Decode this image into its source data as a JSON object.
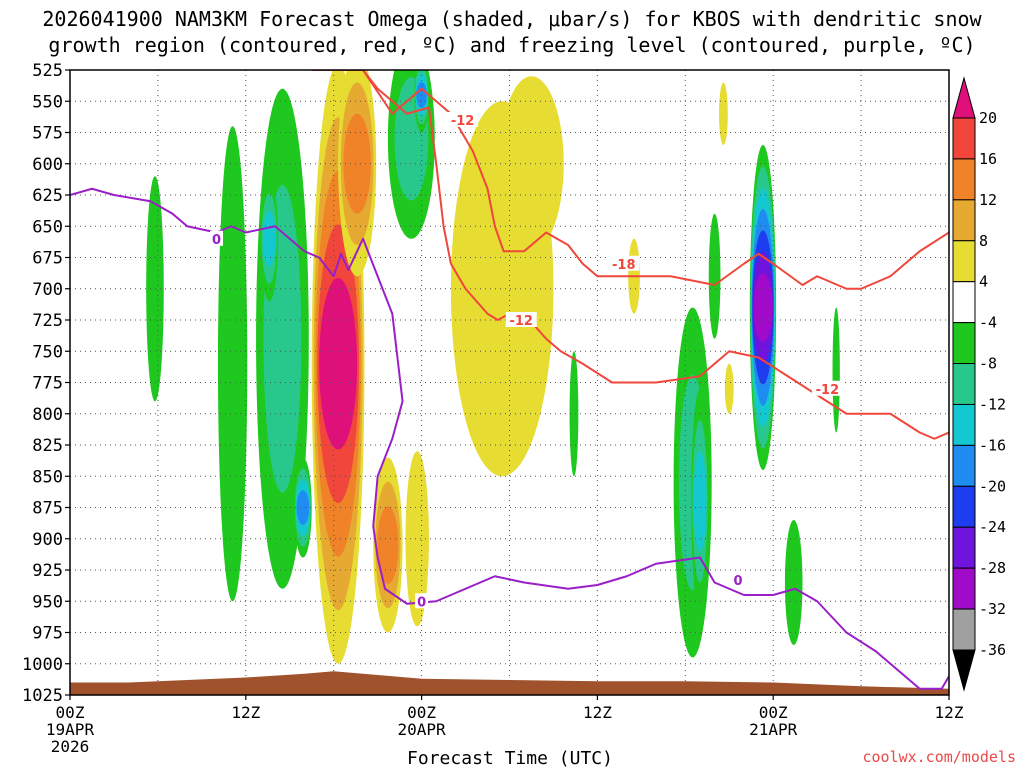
{
  "title": {
    "line1": "2026041900 NAM3KM Forecast Omega (shaded, μbar/s) for KBOS with dendritic snow",
    "line2": "growth region (contoured, red, ºC) and freezing level (contoured, purple, ºC)"
  },
  "credit": "coolwx.com/models",
  "colors": {
    "accent_credit": "#e84a4a",
    "red_contour": "#f0463c",
    "purple_contour": "#9b1ec8",
    "terrain": "#a0522d"
  },
  "chart_data": {
    "type": "heatmap",
    "title": "2026041900 NAM3KM Forecast Omega (shaded, μbar/s) for KBOS with dendritic snow growth region (contoured, red, ºC) and freezing level (contoured, purple, ºC)",
    "xlabel": "Forecast Time (UTC)",
    "ylabel": "",
    "x_range_hours": [
      0,
      60
    ],
    "y_range_mb": [
      525,
      1025
    ],
    "y_ticks": [
      "525",
      "550",
      "575",
      "600",
      "625",
      "650",
      "675",
      "700",
      "725",
      "750",
      "775",
      "800",
      "825",
      "850",
      "875",
      "900",
      "925",
      "950",
      "975",
      "1000",
      "1025"
    ],
    "x_ticks": [
      {
        "hour": 0,
        "label": "00Z",
        "date": "19APR",
        "year": "2026"
      },
      {
        "hour": 12,
        "label": "12Z",
        "date": "",
        "year": ""
      },
      {
        "hour": 24,
        "label": "00Z",
        "date": "20APR",
        "year": ""
      },
      {
        "hour": 36,
        "label": "12Z",
        "date": "",
        "year": ""
      },
      {
        "hour": 48,
        "label": "00Z",
        "date": "21APR",
        "year": ""
      },
      {
        "hour": 60,
        "label": "12Z",
        "date": "",
        "year": ""
      }
    ],
    "colorbar": {
      "labels": [
        "20",
        "16",
        "12",
        "8",
        "4",
        "-4",
        "-8",
        "-12",
        "-16",
        "-20",
        "-24",
        "-28",
        "-32",
        "-36"
      ],
      "bins": [
        {
          "min": 20,
          "max": null,
          "color": "#e0107a"
        },
        {
          "min": 16,
          "max": 20,
          "color": "#f0463c"
        },
        {
          "min": 12,
          "max": 16,
          "color": "#f08228"
        },
        {
          "min": 8,
          "max": 12,
          "color": "#e6aa32"
        },
        {
          "min": 4,
          "max": 8,
          "color": "#e6dc32"
        },
        {
          "min": -4,
          "max": 4,
          "color": "#ffffff"
        },
        {
          "min": -8,
          "max": -4,
          "color": "#1ec81e"
        },
        {
          "min": -12,
          "max": -8,
          "color": "#28c88c"
        },
        {
          "min": -16,
          "max": -12,
          "color": "#14c8d2"
        },
        {
          "min": -20,
          "max": -16,
          "color": "#1e8cf0"
        },
        {
          "min": -24,
          "max": -20,
          "color": "#1e3cf0"
        },
        {
          "min": -28,
          "max": -24,
          "color": "#6e14dc"
        },
        {
          "min": -32,
          "max": -28,
          "color": "#a00ac8"
        },
        {
          "min": -36,
          "max": -32,
          "color": "#a0a0a0"
        },
        {
          "min": null,
          "max": -36,
          "color": "#000000"
        }
      ]
    },
    "omega_regions": [
      {
        "name": "main-ascent-column",
        "center_hour": 18.3,
        "center_mb": 760,
        "half_width_hours": 1.8,
        "half_depth_mb": 240,
        "max_value": 28
      },
      {
        "name": "orange-upper-plume",
        "center_hour": 19.6,
        "center_mb": 600,
        "half_width_hours": 1.3,
        "half_depth_mb": 90,
        "max_value": 14
      },
      {
        "name": "lower-orange-lobe",
        "center_hour": 21.7,
        "center_mb": 905,
        "half_width_hours": 1.0,
        "half_depth_mb": 70,
        "max_value": 13
      },
      {
        "name": "yellow-band-23z",
        "center_hour": 23.7,
        "center_mb": 900,
        "half_width_hours": 0.8,
        "half_depth_mb": 70,
        "max_value": 6
      },
      {
        "name": "yellow-plume-day2",
        "center_hour": 29.5,
        "center_mb": 700,
        "half_width_hours": 3.5,
        "half_depth_mb": 150,
        "max_value": 6
      },
      {
        "name": "yellow-upper-day2",
        "center_hour": 31.5,
        "center_mb": 600,
        "half_width_hours": 2.2,
        "half_depth_mb": 70,
        "max_value": 5
      },
      {
        "name": "yellow-isolated-44z",
        "center_hour": 44.6,
        "center_mb": 560,
        "half_width_hours": 0.3,
        "half_depth_mb": 25,
        "max_value": 5
      },
      {
        "name": "yellow-isolated-40z",
        "center_hour": 38.5,
        "center_mb": 690,
        "half_width_hours": 0.4,
        "half_depth_mb": 30,
        "max_value": 5
      },
      {
        "name": "yellow-isolated-45z",
        "center_hour": 45.0,
        "center_mb": 780,
        "half_width_hours": 0.3,
        "half_depth_mb": 20,
        "max_value": 5
      },
      {
        "name": "green-left-column",
        "center_hour": 5.8,
        "center_mb": 700,
        "half_width_hours": 0.6,
        "half_depth_mb": 90,
        "max_value": -6
      },
      {
        "name": "green-10z-column",
        "center_hour": 11.1,
        "center_mb": 760,
        "half_width_hours": 1.0,
        "half_depth_mb": 190,
        "max_value": -7
      },
      {
        "name": "green-14z-column",
        "center_hour": 14.5,
        "center_mb": 740,
        "half_width_hours": 1.8,
        "half_depth_mb": 200,
        "max_value": -10
      },
      {
        "name": "blue-core-16z",
        "center_hour": 15.9,
        "center_mb": 875,
        "half_width_hours": 0.6,
        "half_depth_mb": 40,
        "max_value": -18
      },
      {
        "name": "teal-core-14z",
        "center_hour": 13.6,
        "center_mb": 660,
        "half_width_hours": 0.6,
        "half_depth_mb": 50,
        "max_value": -12
      },
      {
        "name": "green-upper-23z",
        "center_hour": 23.3,
        "center_mb": 580,
        "half_width_hours": 1.6,
        "half_depth_mb": 80,
        "max_value": -10
      },
      {
        "name": "blue-top-24z",
        "center_hour": 24.0,
        "center_mb": 545,
        "half_width_hours": 0.5,
        "half_depth_mb": 30,
        "max_value": -17
      },
      {
        "name": "green-thin-34z",
        "center_hour": 34.4,
        "center_mb": 800,
        "half_width_hours": 0.3,
        "half_depth_mb": 50,
        "max_value": -6
      },
      {
        "name": "green-day2-column",
        "center_hour": 42.5,
        "center_mb": 855,
        "half_width_hours": 1.3,
        "half_depth_mb": 140,
        "max_value": -8
      },
      {
        "name": "teal-core-43z",
        "center_hour": 43.0,
        "center_mb": 870,
        "half_width_hours": 0.6,
        "half_depth_mb": 90,
        "max_value": -12
      },
      {
        "name": "green-44z-column",
        "center_hour": 44.0,
        "center_mb": 690,
        "half_width_hours": 0.4,
        "half_depth_mb": 50,
        "max_value": -7
      },
      {
        "name": "purple-core-47z",
        "center_hour": 47.3,
        "center_mb": 715,
        "half_width_hours": 0.9,
        "half_depth_mb": 130,
        "max_value": -30
      },
      {
        "name": "green-lower-49z",
        "center_hour": 49.4,
        "center_mb": 935,
        "half_width_hours": 0.6,
        "half_depth_mb": 50,
        "max_value": -7
      },
      {
        "name": "green-51z-column",
        "center_hour": 52.3,
        "center_mb": 765,
        "half_width_hours": 0.25,
        "half_depth_mb": 50,
        "max_value": -6
      }
    ],
    "contours": [
      {
        "name": "dgz-minus12-left",
        "color": "#f0463c",
        "label": "-12",
        "label_at": [
          27.3,
          570
        ],
        "points": [
          [
            16.5,
            525
          ],
          [
            20,
            525
          ],
          [
            22,
            560
          ],
          [
            24,
            540
          ],
          [
            26,
            560
          ],
          [
            27.5,
            590
          ],
          [
            28.5,
            620
          ],
          [
            29,
            650
          ],
          [
            29.6,
            670
          ],
          [
            31,
            670
          ],
          [
            32.5,
            655
          ],
          [
            34,
            665
          ],
          [
            35,
            680
          ],
          [
            36,
            690
          ],
          [
            38,
            690
          ],
          [
            41,
            690
          ],
          [
            44,
            697
          ],
          [
            46,
            680
          ],
          [
            47,
            672
          ],
          [
            48,
            680
          ],
          [
            50,
            697
          ],
          [
            51,
            690
          ],
          [
            53,
            700
          ],
          [
            54,
            700
          ],
          [
            56,
            690
          ],
          [
            58,
            670
          ],
          [
            60,
            655
          ]
        ]
      },
      {
        "name": "dgz-minus18",
        "color": "#f0463c",
        "label": "-18",
        "label_at": [
          37.7,
          680
        ],
        "points": [
          [
            20,
            525
          ],
          [
            21,
            540
          ],
          [
            23,
            560
          ],
          [
            24.5,
            555
          ],
          [
            25,
            600
          ],
          [
            25.5,
            650
          ],
          [
            26,
            680
          ],
          [
            27,
            700
          ],
          [
            28.5,
            720
          ],
          [
            29.2,
            725
          ],
          [
            30,
            720
          ],
          [
            31,
            720
          ],
          [
            32.5,
            740
          ],
          [
            33.5,
            750
          ],
          [
            35,
            760
          ],
          [
            37,
            775
          ],
          [
            40,
            775
          ],
          [
            43,
            770
          ],
          [
            45,
            750
          ],
          [
            47,
            755
          ],
          [
            49,
            770
          ],
          [
            51,
            785
          ],
          [
            53,
            800
          ],
          [
            56,
            800
          ],
          [
            58,
            815
          ],
          [
            59,
            820
          ],
          [
            60,
            815
          ]
        ]
      },
      {
        "name": "freezing-level-zero",
        "color": "#9b1ec8",
        "label": "0",
        "label_at": [
          10.0,
          660
        ],
        "points": [
          [
            0,
            625
          ],
          [
            1.5,
            620
          ],
          [
            3,
            625
          ],
          [
            5.5,
            630
          ],
          [
            7,
            640
          ],
          [
            8,
            650
          ],
          [
            10,
            655
          ],
          [
            11,
            650
          ],
          [
            12,
            655
          ],
          [
            14,
            650
          ],
          [
            15,
            660
          ],
          [
            16,
            670
          ],
          [
            17,
            675
          ],
          [
            18,
            690
          ],
          [
            18.5,
            672
          ],
          [
            19,
            685
          ],
          [
            20,
            660
          ],
          [
            21,
            690
          ],
          [
            22,
            720
          ],
          [
            22.7,
            790
          ],
          [
            22,
            820
          ],
          [
            21,
            850
          ],
          [
            20.7,
            890
          ],
          [
            21,
            915
          ],
          [
            21.5,
            940
          ],
          [
            23,
            952
          ],
          [
            25,
            950
          ],
          [
            27,
            940
          ],
          [
            29,
            930
          ],
          [
            31,
            935
          ],
          [
            34,
            940
          ],
          [
            36,
            937
          ],
          [
            38,
            930
          ],
          [
            40,
            920
          ],
          [
            43,
            915
          ],
          [
            44,
            935
          ],
          [
            46,
            945
          ],
          [
            48,
            945
          ],
          [
            49.5,
            940
          ],
          [
            51,
            950
          ],
          [
            53,
            975
          ],
          [
            55,
            990
          ],
          [
            57,
            1010
          ],
          [
            58,
            1020
          ],
          [
            59.5,
            1020
          ],
          [
            60,
            1010
          ]
        ]
      }
    ],
    "contour_labels": [
      {
        "text": "-12",
        "color": "#f0463c",
        "hour": 26.8,
        "mb": 565
      },
      {
        "text": "-18",
        "color": "#f0463c",
        "hour": 37.8,
        "mb": 680
      },
      {
        "text": "-12",
        "color": "#f0463c",
        "hour": 30.8,
        "mb": 725
      },
      {
        "text": "-12",
        "color": "#f0463c",
        "hour": 51.7,
        "mb": 780
      },
      {
        "text": "0",
        "color": "#9b1ec8",
        "hour": 10.0,
        "mb": 660
      },
      {
        "text": "0",
        "color": "#9b1ec8",
        "hour": 24.0,
        "mb": 950
      },
      {
        "text": "0",
        "color": "#9b1ec8",
        "hour": 45.6,
        "mb": 933
      }
    ],
    "terrain": {
      "color": "#a0522d",
      "surface_mb": [
        [
          0,
          1015
        ],
        [
          4,
          1015
        ],
        [
          8,
          1013
        ],
        [
          12,
          1011
        ],
        [
          16,
          1008
        ],
        [
          18,
          1006
        ],
        [
          21,
          1009
        ],
        [
          24,
          1012
        ],
        [
          30,
          1013
        ],
        [
          36,
          1014
        ],
        [
          42,
          1014
        ],
        [
          48,
          1015
        ],
        [
          54,
          1018
        ],
        [
          60,
          1020
        ]
      ]
    }
  }
}
